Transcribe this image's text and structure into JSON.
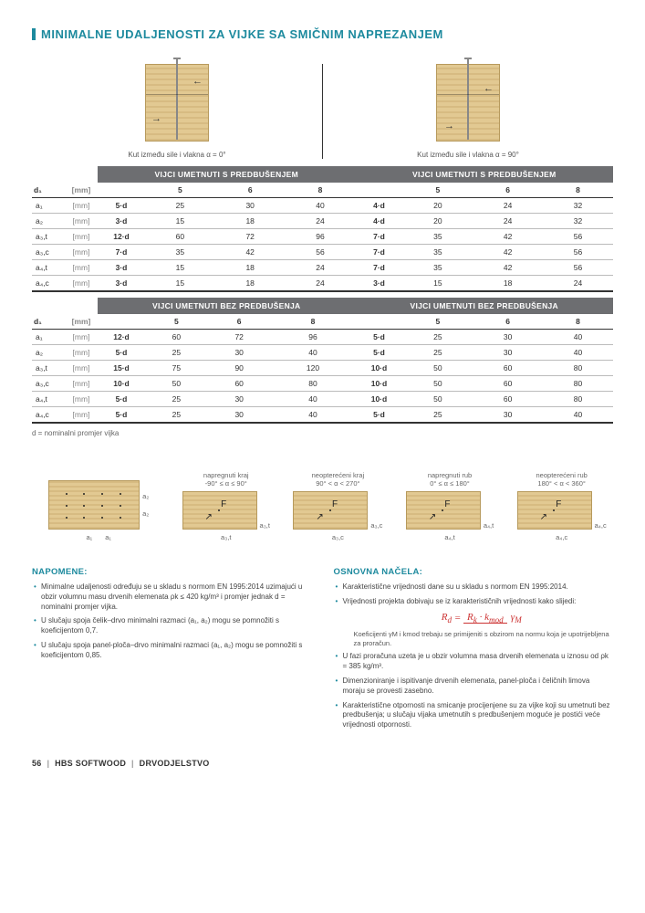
{
  "page_title": "MINIMALNE UDALJENOSTI ZA VIJKE SA SMIČNIM NAPREZANJEM",
  "diagrams": {
    "left_caption": "Kut između sile i vlakna α = 0°",
    "right_caption": "Kut između sile i vlakna α = 90°"
  },
  "tables": {
    "section_left": "VIJCI UMETNUTI S PREDBUŠENJEM",
    "section_right": "VIJCI UMETNUTI S PREDBUŠENJEM",
    "section2_left": "VIJCI UMETNUTI BEZ PREDBUŠENJA",
    "section2_right": "VIJCI UMETNUTI BEZ PREDBUŠENJA",
    "d1_label": "d₁",
    "d1_unit": "[mm]",
    "cols_left": [
      "5",
      "6",
      "8"
    ],
    "cols_right": [
      "5",
      "6",
      "8"
    ],
    "table1_rows": [
      {
        "h": "a₁",
        "u": "[mm]",
        "fL": "5·d",
        "L": [
          "25",
          "30",
          "40"
        ],
        "fR": "4·d",
        "R": [
          "20",
          "24",
          "32"
        ]
      },
      {
        "h": "a₂",
        "u": "[mm]",
        "fL": "3·d",
        "L": [
          "15",
          "18",
          "24"
        ],
        "fR": "4·d",
        "R": [
          "20",
          "24",
          "32"
        ]
      },
      {
        "h": "a₃,t",
        "u": "[mm]",
        "fL": "12·d",
        "L": [
          "60",
          "72",
          "96"
        ],
        "fR": "7·d",
        "R": [
          "35",
          "42",
          "56"
        ]
      },
      {
        "h": "a₃,c",
        "u": "[mm]",
        "fL": "7·d",
        "L": [
          "35",
          "42",
          "56"
        ],
        "fR": "7·d",
        "R": [
          "35",
          "42",
          "56"
        ]
      },
      {
        "h": "a₄,t",
        "u": "[mm]",
        "fL": "3·d",
        "L": [
          "15",
          "18",
          "24"
        ],
        "fR": "7·d",
        "R": [
          "35",
          "42",
          "56"
        ]
      },
      {
        "h": "a₄,c",
        "u": "[mm]",
        "fL": "3·d",
        "L": [
          "15",
          "18",
          "24"
        ],
        "fR": "3·d",
        "R": [
          "15",
          "18",
          "24"
        ]
      }
    ],
    "table2_rows": [
      {
        "h": "a₁",
        "u": "[mm]",
        "fL": "12·d",
        "L": [
          "60",
          "72",
          "96"
        ],
        "fR": "5·d",
        "R": [
          "25",
          "30",
          "40"
        ]
      },
      {
        "h": "a₂",
        "u": "[mm]",
        "fL": "5·d",
        "L": [
          "25",
          "30",
          "40"
        ],
        "fR": "5·d",
        "R": [
          "25",
          "30",
          "40"
        ]
      },
      {
        "h": "a₃,t",
        "u": "[mm]",
        "fL": "15·d",
        "L": [
          "75",
          "90",
          "120"
        ],
        "fR": "10·d",
        "R": [
          "50",
          "60",
          "80"
        ]
      },
      {
        "h": "a₃,c",
        "u": "[mm]",
        "fL": "10·d",
        "L": [
          "50",
          "60",
          "80"
        ],
        "fR": "10·d",
        "R": [
          "50",
          "60",
          "80"
        ]
      },
      {
        "h": "a₄,t",
        "u": "[mm]",
        "fL": "5·d",
        "L": [
          "25",
          "30",
          "40"
        ],
        "fR": "10·d",
        "R": [
          "50",
          "60",
          "80"
        ]
      },
      {
        "h": "a₄,c",
        "u": "[mm]",
        "fL": "5·d",
        "L": [
          "25",
          "30",
          "40"
        ],
        "fR": "5·d",
        "R": [
          "25",
          "30",
          "40"
        ]
      }
    ],
    "footnote": "d = nominalni promjer vijka"
  },
  "mini": {
    "labels_left": [
      "a₂",
      "a₂"
    ],
    "labels_bottom": [
      "a₁",
      "a₁"
    ],
    "cols": [
      {
        "cap_top": "napregnuti kraj",
        "cap_bot": "-90° ≤ α ≤ 90°",
        "lbl": "a₃,t"
      },
      {
        "cap_top": "neopterećeni kraj",
        "cap_bot": "90° < α < 270°",
        "lbl": "a₃,c"
      },
      {
        "cap_top": "napregnuti rub",
        "cap_bot": "0° ≤ α ≤ 180°",
        "lbl": "a₄,t"
      },
      {
        "cap_top": "neopterećeni rub",
        "cap_bot": "180° < α < 360°",
        "lbl": "a₄,c"
      }
    ]
  },
  "notes": {
    "left_title": "NAPOMENE:",
    "left_items": [
      "Minimalne udaljenosti određuju se u skladu s normom EN 1995:2014 uzimajući u obzir volumnu masu drvenih elemenata ρk ≤ 420 kg/m³ i promjer jednak d = nominalni promjer vijka.",
      "U slučaju spoja čelik–drvo minimalni razmaci (a₁, a₂) mogu se pomnožiti s koeficijentom 0,7.",
      "U slučaju spoja panel-ploča–drvo minimalni razmaci (a₁, a₂) mogu se pomnožiti s koeficijentom 0,85."
    ],
    "right_title": "OSNOVNA NAČELA:",
    "right_item1": "Karakteristične vrijednosti dane su u skladu s normom EN 1995:2014.",
    "right_item2": "Vrijednosti projekta dobivaju se iz karakterističnih vrijednosti kako slijedi:",
    "right_subnote": "Koeficijenti γM i kmod trebaju se primijeniti s obzirom na normu koja je upotrijebljena za proračun.",
    "right_item3": "U fazi proračuna uzeta je u obzir volumna masa drvenih elemenata u iznosu od ρk = 385 kg/m³.",
    "right_item4": "Dimenzioniranje i ispitivanje drvenih elemenata, panel-ploča i čeličnih limova moraju se provesti zasebno.",
    "right_item5": "Karakteristične otpornosti na smicanje procijenjene su za vijke koji su umetnuti bez predbušenja; u slučaju vijaka umetnutih s predbušenjem moguće je postići veće vrijednosti otpornosti.",
    "formula": {
      "Rd": "R",
      "d": "d",
      "eq": "=",
      "Rk": "R",
      "k": "k",
      "kmod": "k",
      "mod": "mod",
      "gamma": "γ",
      "M": "M",
      "num": "Rk · kmod",
      "den": "γM"
    }
  },
  "footer": {
    "page": "56",
    "brand": "HBS SOFTWOOD",
    "cat": "DRVODJELSTVO"
  }
}
